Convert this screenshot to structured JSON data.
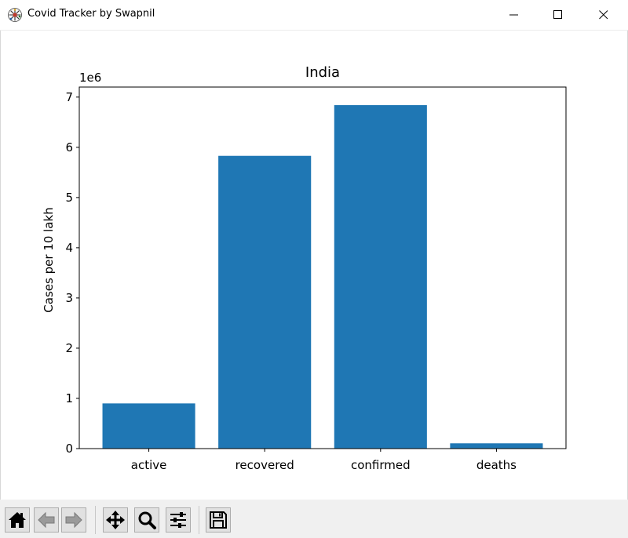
{
  "window": {
    "title": "Covid Tracker by Swapnil",
    "app_icon": "covid-virus-icon",
    "controls": [
      "minimize-icon",
      "maximize-icon",
      "close-icon"
    ]
  },
  "chart_data": {
    "type": "bar",
    "title": "India",
    "xlabel": "",
    "ylabel": "Cases per 10 lakh",
    "y_offset_label": "1e6",
    "categories": [
      "active",
      "recovered",
      "confirmed",
      "deaths"
    ],
    "values": [
      900000,
      5830000,
      6840000,
      105000
    ],
    "ylim": [
      0,
      7200000
    ],
    "yticks": [
      0,
      1000000,
      2000000,
      3000000,
      4000000,
      5000000,
      6000000,
      7000000
    ],
    "ytick_labels": [
      "0",
      "1",
      "2",
      "3",
      "4",
      "5",
      "6",
      "7"
    ],
    "bar_color": "#1f77b4",
    "grid": false,
    "legend": "none"
  },
  "toolbar": {
    "buttons": [
      {
        "name": "home-button",
        "icon": "home-icon"
      },
      {
        "name": "back-button",
        "icon": "back-arrow-icon"
      },
      {
        "name": "forward-button",
        "icon": "forward-arrow-icon"
      },
      {
        "name": "pan-button",
        "icon": "pan-move-icon"
      },
      {
        "name": "zoom-button",
        "icon": "zoom-magnifier-icon"
      },
      {
        "name": "configure-subplots-button",
        "icon": "sliders-icon"
      },
      {
        "name": "save-button",
        "icon": "save-floppy-icon"
      }
    ]
  }
}
